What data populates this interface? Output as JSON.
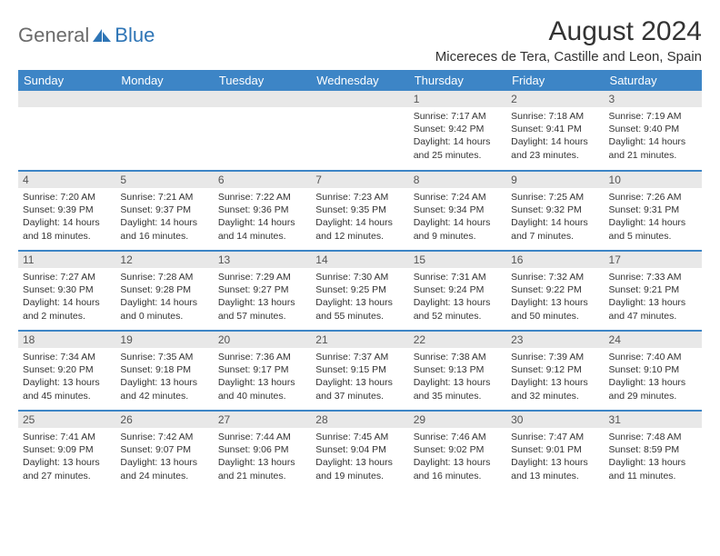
{
  "brand": {
    "part1": "General",
    "part2": "Blue"
  },
  "title": "August 2024",
  "location": "Micereces de Tera, Castille and Leon, Spain",
  "colors": {
    "header_bg": "#3d85c6",
    "header_text": "#ffffff",
    "daynum_bg": "#e8e8e8",
    "border": "#3d85c6",
    "brand_grey": "#6b6b6b",
    "brand_blue": "#2e75b6"
  },
  "dow": [
    "Sunday",
    "Monday",
    "Tuesday",
    "Wednesday",
    "Thursday",
    "Friday",
    "Saturday"
  ],
  "weeks": [
    [
      {
        "n": "",
        "sr": "",
        "ss": "",
        "dl": ""
      },
      {
        "n": "",
        "sr": "",
        "ss": "",
        "dl": ""
      },
      {
        "n": "",
        "sr": "",
        "ss": "",
        "dl": ""
      },
      {
        "n": "",
        "sr": "",
        "ss": "",
        "dl": ""
      },
      {
        "n": "1",
        "sr": "Sunrise: 7:17 AM",
        "ss": "Sunset: 9:42 PM",
        "dl": "Daylight: 14 hours and 25 minutes."
      },
      {
        "n": "2",
        "sr": "Sunrise: 7:18 AM",
        "ss": "Sunset: 9:41 PM",
        "dl": "Daylight: 14 hours and 23 minutes."
      },
      {
        "n": "3",
        "sr": "Sunrise: 7:19 AM",
        "ss": "Sunset: 9:40 PM",
        "dl": "Daylight: 14 hours and 21 minutes."
      }
    ],
    [
      {
        "n": "4",
        "sr": "Sunrise: 7:20 AM",
        "ss": "Sunset: 9:39 PM",
        "dl": "Daylight: 14 hours and 18 minutes."
      },
      {
        "n": "5",
        "sr": "Sunrise: 7:21 AM",
        "ss": "Sunset: 9:37 PM",
        "dl": "Daylight: 14 hours and 16 minutes."
      },
      {
        "n": "6",
        "sr": "Sunrise: 7:22 AM",
        "ss": "Sunset: 9:36 PM",
        "dl": "Daylight: 14 hours and 14 minutes."
      },
      {
        "n": "7",
        "sr": "Sunrise: 7:23 AM",
        "ss": "Sunset: 9:35 PM",
        "dl": "Daylight: 14 hours and 12 minutes."
      },
      {
        "n": "8",
        "sr": "Sunrise: 7:24 AM",
        "ss": "Sunset: 9:34 PM",
        "dl": "Daylight: 14 hours and 9 minutes."
      },
      {
        "n": "9",
        "sr": "Sunrise: 7:25 AM",
        "ss": "Sunset: 9:32 PM",
        "dl": "Daylight: 14 hours and 7 minutes."
      },
      {
        "n": "10",
        "sr": "Sunrise: 7:26 AM",
        "ss": "Sunset: 9:31 PM",
        "dl": "Daylight: 14 hours and 5 minutes."
      }
    ],
    [
      {
        "n": "11",
        "sr": "Sunrise: 7:27 AM",
        "ss": "Sunset: 9:30 PM",
        "dl": "Daylight: 14 hours and 2 minutes."
      },
      {
        "n": "12",
        "sr": "Sunrise: 7:28 AM",
        "ss": "Sunset: 9:28 PM",
        "dl": "Daylight: 14 hours and 0 minutes."
      },
      {
        "n": "13",
        "sr": "Sunrise: 7:29 AM",
        "ss": "Sunset: 9:27 PM",
        "dl": "Daylight: 13 hours and 57 minutes."
      },
      {
        "n": "14",
        "sr": "Sunrise: 7:30 AM",
        "ss": "Sunset: 9:25 PM",
        "dl": "Daylight: 13 hours and 55 minutes."
      },
      {
        "n": "15",
        "sr": "Sunrise: 7:31 AM",
        "ss": "Sunset: 9:24 PM",
        "dl": "Daylight: 13 hours and 52 minutes."
      },
      {
        "n": "16",
        "sr": "Sunrise: 7:32 AM",
        "ss": "Sunset: 9:22 PM",
        "dl": "Daylight: 13 hours and 50 minutes."
      },
      {
        "n": "17",
        "sr": "Sunrise: 7:33 AM",
        "ss": "Sunset: 9:21 PM",
        "dl": "Daylight: 13 hours and 47 minutes."
      }
    ],
    [
      {
        "n": "18",
        "sr": "Sunrise: 7:34 AM",
        "ss": "Sunset: 9:20 PM",
        "dl": "Daylight: 13 hours and 45 minutes."
      },
      {
        "n": "19",
        "sr": "Sunrise: 7:35 AM",
        "ss": "Sunset: 9:18 PM",
        "dl": "Daylight: 13 hours and 42 minutes."
      },
      {
        "n": "20",
        "sr": "Sunrise: 7:36 AM",
        "ss": "Sunset: 9:17 PM",
        "dl": "Daylight: 13 hours and 40 minutes."
      },
      {
        "n": "21",
        "sr": "Sunrise: 7:37 AM",
        "ss": "Sunset: 9:15 PM",
        "dl": "Daylight: 13 hours and 37 minutes."
      },
      {
        "n": "22",
        "sr": "Sunrise: 7:38 AM",
        "ss": "Sunset: 9:13 PM",
        "dl": "Daylight: 13 hours and 35 minutes."
      },
      {
        "n": "23",
        "sr": "Sunrise: 7:39 AM",
        "ss": "Sunset: 9:12 PM",
        "dl": "Daylight: 13 hours and 32 minutes."
      },
      {
        "n": "24",
        "sr": "Sunrise: 7:40 AM",
        "ss": "Sunset: 9:10 PM",
        "dl": "Daylight: 13 hours and 29 minutes."
      }
    ],
    [
      {
        "n": "25",
        "sr": "Sunrise: 7:41 AM",
        "ss": "Sunset: 9:09 PM",
        "dl": "Daylight: 13 hours and 27 minutes."
      },
      {
        "n": "26",
        "sr": "Sunrise: 7:42 AM",
        "ss": "Sunset: 9:07 PM",
        "dl": "Daylight: 13 hours and 24 minutes."
      },
      {
        "n": "27",
        "sr": "Sunrise: 7:44 AM",
        "ss": "Sunset: 9:06 PM",
        "dl": "Daylight: 13 hours and 21 minutes."
      },
      {
        "n": "28",
        "sr": "Sunrise: 7:45 AM",
        "ss": "Sunset: 9:04 PM",
        "dl": "Daylight: 13 hours and 19 minutes."
      },
      {
        "n": "29",
        "sr": "Sunrise: 7:46 AM",
        "ss": "Sunset: 9:02 PM",
        "dl": "Daylight: 13 hours and 16 minutes."
      },
      {
        "n": "30",
        "sr": "Sunrise: 7:47 AM",
        "ss": "Sunset: 9:01 PM",
        "dl": "Daylight: 13 hours and 13 minutes."
      },
      {
        "n": "31",
        "sr": "Sunrise: 7:48 AM",
        "ss": "Sunset: 8:59 PM",
        "dl": "Daylight: 13 hours and 11 minutes."
      }
    ]
  ]
}
